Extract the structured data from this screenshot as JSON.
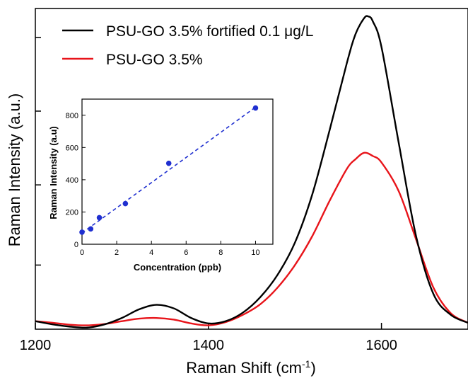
{
  "chart_data": [
    {
      "type": "line",
      "title": "",
      "xlabel": "Raman Shift (cm",
      "xlabel_sup": "-1",
      "xlabel_suffix": ")",
      "ylabel": "Raman Intensity (a.u.)",
      "xlim": [
        1200,
        1700
      ],
      "ylim": [
        0,
        1
      ],
      "y_tick_values": [
        0.2,
        0.45,
        0.68,
        0.91
      ],
      "x_ticks": [
        {
          "value": 1200,
          "label": "1200"
        },
        {
          "value": 1400,
          "label": "1400"
        },
        {
          "value": 1600,
          "label": "1600"
        }
      ],
      "y_tick_labels_shown": false,
      "grid": false,
      "legend_position": "top-left",
      "series": [
        {
          "name": "PSU-GO 3.5% fortified 0.1 μg/L",
          "color": "#000000",
          "x": [
            1200,
            1220,
            1240,
            1260,
            1280,
            1300,
            1320,
            1340,
            1360,
            1380,
            1400,
            1420,
            1440,
            1460,
            1480,
            1500,
            1520,
            1540,
            1560,
            1570,
            1580,
            1585,
            1590,
            1600,
            1620,
            1640,
            1660,
            1680,
            1700
          ],
          "y": [
            0.025,
            0.015,
            0.008,
            0.005,
            0.015,
            0.035,
            0.062,
            0.076,
            0.065,
            0.035,
            0.018,
            0.025,
            0.052,
            0.1,
            0.17,
            0.27,
            0.42,
            0.62,
            0.83,
            0.92,
            0.97,
            0.975,
            0.96,
            0.88,
            0.58,
            0.29,
            0.11,
            0.045,
            0.02
          ]
        },
        {
          "name": "PSU-GO 3.5%",
          "color": "#e8141a",
          "x": [
            1200,
            1220,
            1240,
            1260,
            1280,
            1300,
            1320,
            1340,
            1360,
            1380,
            1400,
            1420,
            1440,
            1460,
            1480,
            1500,
            1520,
            1540,
            1560,
            1570,
            1580,
            1590,
            1600,
            1620,
            1640,
            1660,
            1680,
            1700
          ],
          "y": [
            0.025,
            0.02,
            0.014,
            0.012,
            0.016,
            0.025,
            0.033,
            0.035,
            0.03,
            0.018,
            0.012,
            0.022,
            0.045,
            0.078,
            0.13,
            0.2,
            0.29,
            0.4,
            0.5,
            0.53,
            0.55,
            0.54,
            0.52,
            0.43,
            0.28,
            0.13,
            0.05,
            0.02
          ]
        }
      ]
    },
    {
      "type": "scatter",
      "title": "",
      "xlabel": "Concentration (ppb)",
      "ylabel": "Raman Intensity (a.u)",
      "xlim": [
        0,
        11
      ],
      "ylim": [
        0,
        900
      ],
      "x_ticks": [
        0,
        2,
        4,
        6,
        8,
        10
      ],
      "y_ticks": [
        0,
        200,
        400,
        600,
        800
      ],
      "grid": false,
      "points_color": "#1f2fd0",
      "fit_line": {
        "style": "dashed",
        "color": "#1f2fd0",
        "x": [
          0,
          10
        ],
        "y": [
          70,
          850
        ]
      },
      "series": [
        {
          "x": [
            0,
            0.5,
            1,
            2.5,
            5,
            10
          ],
          "y": [
            75,
            95,
            165,
            252,
            502,
            845
          ]
        }
      ]
    }
  ]
}
